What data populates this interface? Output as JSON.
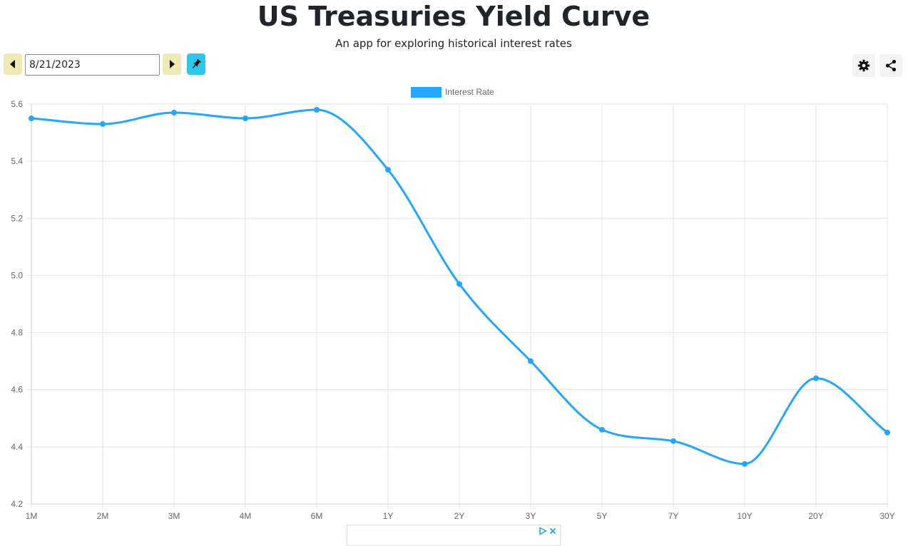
{
  "header": {
    "title": "US Treasuries Yield Curve",
    "subtitle": "An app for exploring historical interest rates"
  },
  "toolbar": {
    "date_value": "8/21/2023",
    "prev_icon": "caret-left-icon",
    "next_icon": "caret-right-icon",
    "pin_icon": "pin-icon",
    "settings_icon": "gear-icon",
    "share_icon": "share-icon"
  },
  "colors": {
    "nav_button": "#efe9b5",
    "pin_button": "#2ec6ea",
    "series": "#22a6ff",
    "grid": "#e4e4e4"
  },
  "chart_data": {
    "type": "line",
    "categories": [
      "1M",
      "2M",
      "3M",
      "4M",
      "6M",
      "1Y",
      "2Y",
      "3Y",
      "5Y",
      "7Y",
      "10Y",
      "20Y",
      "30Y"
    ],
    "series": [
      {
        "name": "Interest Rate",
        "values": [
          5.55,
          5.53,
          5.57,
          5.55,
          5.58,
          5.37,
          4.97,
          4.7,
          4.46,
          4.42,
          4.34,
          4.64,
          4.45
        ]
      }
    ],
    "ylim": [
      4.2,
      5.6
    ],
    "yticks": [
      "5.6",
      "5.4",
      "5.2",
      "5.0",
      "4.8",
      "4.6",
      "4.4",
      "4.2"
    ],
    "grid": true,
    "legend": "top-center",
    "smooth": true
  },
  "ad": {
    "play_icon": "ad-choices-icon",
    "close_icon": "close-icon"
  }
}
